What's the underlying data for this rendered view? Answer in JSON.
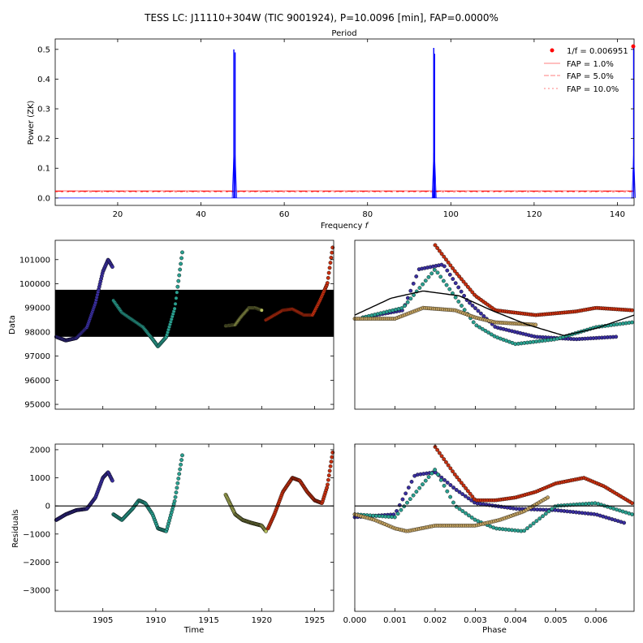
{
  "title": "TESS LC: J11110+304W (TIC 9001924), P=10.0096 [min], FAP=0.0000%",
  "chart_data": [
    {
      "id": "periodogram",
      "type": "line",
      "top_axis_label": "Period",
      "xlabel": "Frequency $f$",
      "ylabel": "Power (ZK)",
      "xlim": [
        5,
        144
      ],
      "ylim": [
        -0.025,
        0.535
      ],
      "xticks": [
        20,
        40,
        60,
        80,
        100,
        120,
        140
      ],
      "xtick_labels": [
        "20",
        "40",
        "60",
        "80",
        "100",
        "120",
        "140"
      ],
      "yticks": [
        0.0,
        0.1,
        0.2,
        0.3,
        0.4,
        0.5
      ],
      "ytick_labels": [
        "0.0",
        "0.1",
        "0.2",
        "0.3",
        "0.4",
        "0.5"
      ],
      "peaks": [
        {
          "f": 47.9,
          "power": 0.5
        },
        {
          "f": 48.2,
          "power": 0.49
        },
        {
          "f": 95.9,
          "power": 0.505
        },
        {
          "f": 96.1,
          "power": 0.485
        },
        {
          "f": 143.9,
          "power": 0.51
        }
      ],
      "best_frequency": {
        "f": 143.9,
        "power": 0.51
      },
      "fap_levels": {
        "fap_1": 0.024,
        "fap_5": 0.022,
        "fap_10": 0.021
      },
      "legend": {
        "position": "top-right",
        "entries": [
          "1/f = 0.006951",
          "FAP = 1.0%",
          "FAP = 5.0%",
          "FAP = 10.0%"
        ]
      },
      "series_color": "#0000ff",
      "fap_color": "#ff0000"
    },
    {
      "id": "data-vs-time",
      "type": "scatter",
      "ylabel": "Data",
      "xlim": [
        1900.5,
        1926.8
      ],
      "ylim": [
        94800,
        101800
      ],
      "yticks": [
        95000,
        96000,
        97000,
        98000,
        99000,
        100000,
        101000
      ],
      "ytick_labels": [
        "95000",
        "96000",
        "97000",
        "98000",
        "99000",
        "100000",
        "101000"
      ],
      "band": {
        "from": 97800,
        "to": 99750,
        "color": "#000000"
      },
      "segments": [
        {
          "x": [
            1900.6,
            1901.5,
            1902.5,
            1903.5,
            1904.3,
            1905.0,
            1905.5,
            1905.9
          ],
          "y": [
            97800,
            97650,
            97750,
            98200,
            99200,
            100500,
            101000,
            100700
          ],
          "color": "#3a2fa0"
        },
        {
          "x": [
            1906.0,
            1906.8,
            1907.8,
            1908.8,
            1909.7,
            1910.2,
            1911.0,
            1911.8,
            1912.5
          ],
          "y": [
            99300,
            98800,
            98500,
            98200,
            97700,
            97400,
            97800,
            99000,
            101300
          ],
          "color": "#2aa090"
        },
        {
          "x": [
            1916.6,
            1917.5,
            1918.0,
            1918.8,
            1919.4,
            1920.0
          ],
          "y": [
            98250,
            98300,
            98600,
            99000,
            99000,
            98900
          ],
          "color": "#b8c060"
        },
        {
          "x": [
            1920.4,
            1921.2,
            1922.0,
            1922.9,
            1924.0,
            1924.8,
            1925.5,
            1926.2,
            1926.7
          ],
          "y": [
            98500,
            98700,
            98900,
            98950,
            98700,
            98700,
            99300,
            100000,
            101500
          ],
          "color": "#c83010"
        }
      ]
    },
    {
      "id": "data-vs-phase",
      "type": "scatter",
      "xlim": [
        0.0,
        0.00695
      ],
      "ylim": [
        94800,
        101800
      ],
      "model": {
        "phase": [
          0.0,
          0.0009,
          0.0017,
          0.0026,
          0.0034,
          0.0043,
          0.0052,
          0.006,
          0.00695
        ],
        "value": [
          98700,
          99400,
          99700,
          99500,
          98900,
          98300,
          97850,
          98150,
          98700
        ]
      },
      "segments": [
        {
          "x": [
            0.0002,
            0.0012,
            0.0016,
            0.0022,
            0.0028,
            0.0035,
            0.0045,
            0.0055,
            0.0065
          ],
          "y": [
            98600,
            98900,
            100600,
            100800,
            99300,
            98200,
            97800,
            97700,
            97800
          ],
          "color": "#3a2fa0"
        },
        {
          "x": [
            0.0002,
            0.0012,
            0.002,
            0.003,
            0.0035,
            0.004,
            0.005,
            0.006,
            0.0069
          ],
          "y": [
            98600,
            99000,
            100600,
            98300,
            97800,
            97500,
            97700,
            98200,
            98400
          ],
          "color": "#2aa090"
        },
        {
          "x": [
            0.0,
            0.001,
            0.0017,
            0.0025,
            0.003,
            0.0035,
            0.0045
          ],
          "y": [
            98550,
            98550,
            99000,
            98900,
            98600,
            98400,
            98300
          ],
          "color": "#c0a060"
        },
        {
          "x": [
            0.002,
            0.0025,
            0.003,
            0.0035,
            0.0045,
            0.0055,
            0.006,
            0.0069
          ],
          "y": [
            101600,
            100500,
            99500,
            98900,
            98700,
            98850,
            99000,
            98900
          ],
          "color": "#c83010"
        }
      ]
    },
    {
      "id": "residuals-vs-time",
      "type": "scatter",
      "xlabel": "Time",
      "ylabel": "Residuals",
      "xlim": [
        1900.5,
        1926.8
      ],
      "ylim": [
        -3750,
        2200
      ],
      "xticks": [
        1905,
        1910,
        1915,
        1920,
        1925
      ],
      "xtick_labels": [
        "1905",
        "1910",
        "1915",
        "1920",
        "1925"
      ],
      "yticks": [
        -3000,
        -2000,
        -1000,
        0,
        1000,
        2000
      ],
      "ytick_labels": [
        "−3000",
        "−2000",
        "−1000",
        "0",
        "1000",
        "2000"
      ],
      "zero_line": 0,
      "segments": [
        {
          "x": [
            1900.6,
            1901.5,
            1902.5,
            1903.5,
            1904.3,
            1905.0,
            1905.5,
            1905.9
          ],
          "y": [
            -500,
            -300,
            -150,
            -100,
            300,
            1000,
            1200,
            900
          ],
          "color": "#3a2fa0"
        },
        {
          "x": [
            1906.0,
            1906.8,
            1907.8,
            1908.4,
            1909.0,
            1909.7,
            1910.2,
            1911.0,
            1911.8,
            1912.5
          ],
          "y": [
            -300,
            -500,
            -100,
            200,
            100,
            -300,
            -800,
            -900,
            200,
            1800
          ],
          "color": "#2aa090"
        },
        {
          "x": [
            1916.6,
            1917.5,
            1918.2,
            1919.0,
            1920.0,
            1920.4
          ],
          "y": [
            400,
            -300,
            -500,
            -600,
            -700,
            -900
          ],
          "color": "#b8c060"
        },
        {
          "x": [
            1920.6,
            1921.2,
            1922.0,
            1922.9,
            1923.6,
            1924.3,
            1925.0,
            1925.7,
            1926.2,
            1926.7
          ],
          "y": [
            -800,
            -300,
            500,
            1000,
            900,
            500,
            200,
            100,
            700,
            1900
          ],
          "color": "#c83010"
        }
      ]
    },
    {
      "id": "residuals-vs-phase",
      "type": "scatter",
      "xlabel": "Phase",
      "xlim": [
        0.0,
        0.00695
      ],
      "ylim": [
        -3750,
        2200
      ],
      "xticks": [
        0.0,
        0.001,
        0.002,
        0.003,
        0.004,
        0.005,
        0.006
      ],
      "xtick_labels": [
        "0.000",
        "0.001",
        "0.002",
        "0.003",
        "0.004",
        "0.005",
        "0.006"
      ],
      "zero_line": 0,
      "segments": [
        {
          "x": [
            0.0,
            0.001,
            0.0015,
            0.002,
            0.0025,
            0.003,
            0.004,
            0.005,
            0.006,
            0.0067
          ],
          "y": [
            -400,
            -300,
            1100,
            1200,
            600,
            100,
            -100,
            -150,
            -300,
            -600
          ],
          "color": "#3a2fa0"
        },
        {
          "x": [
            0.0,
            0.001,
            0.002,
            0.0025,
            0.003,
            0.0035,
            0.0042,
            0.005,
            0.006,
            0.0069
          ],
          "y": [
            -300,
            -400,
            1300,
            0,
            -500,
            -800,
            -900,
            0,
            100,
            -300
          ],
          "color": "#2aa090"
        },
        {
          "x": [
            0.0,
            0.0005,
            0.001,
            0.0013,
            0.002,
            0.0025,
            0.003,
            0.0036,
            0.0042,
            0.0048
          ],
          "y": [
            -300,
            -500,
            -800,
            -900,
            -700,
            -700,
            -700,
            -500,
            -200,
            300
          ],
          "color": "#c0a060"
        },
        {
          "x": [
            0.002,
            0.0025,
            0.003,
            0.0035,
            0.004,
            0.0045,
            0.005,
            0.0057,
            0.0062,
            0.0069
          ],
          "y": [
            2100,
            1100,
            200,
            200,
            300,
            500,
            800,
            1000,
            700,
            100
          ],
          "color": "#c83010"
        }
      ]
    }
  ]
}
